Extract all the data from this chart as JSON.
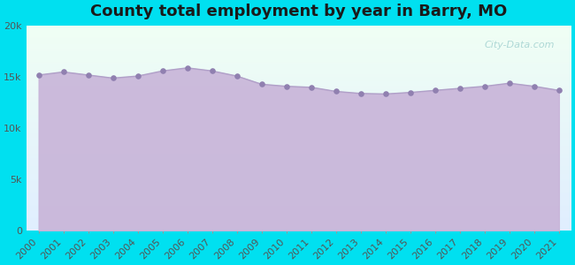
{
  "title": "County total employment by year in Barry, MO",
  "years": [
    2000,
    2001,
    2002,
    2003,
    2004,
    2005,
    2006,
    2007,
    2008,
    2009,
    2010,
    2011,
    2012,
    2013,
    2014,
    2015,
    2016,
    2017,
    2018,
    2019,
    2020,
    2021
  ],
  "values": [
    15200,
    15500,
    15200,
    14900,
    15100,
    15600,
    15900,
    15600,
    15100,
    14300,
    14100,
    14000,
    13600,
    13400,
    13350,
    13500,
    13700,
    13900,
    14100,
    14400,
    14100,
    13700
  ],
  "line_color": "#b0a0c8",
  "fill_color_hex": "#c8b4d8",
  "fill_alpha": 0.9,
  "marker_color": "#9080b0",
  "marker_size": 14,
  "bg_outer": "#00e0f0",
  "bg_plot_top": "#f0fff4",
  "bg_plot_bottom": "#e8f0ff",
  "ylim": [
    0,
    20000
  ],
  "yticks": [
    0,
    5000,
    10000,
    15000,
    20000
  ],
  "ytick_labels": [
    "0",
    "5k",
    "10k",
    "15k",
    "20k"
  ],
  "title_fontsize": 13,
  "tick_fontsize": 8,
  "watermark": "City-Data.com"
}
